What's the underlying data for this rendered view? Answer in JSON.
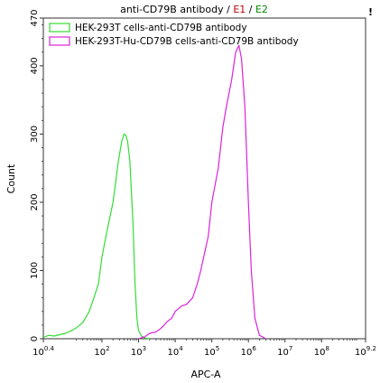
{
  "chart_data": {
    "type": "line",
    "title": {
      "prefix": "anti-CD79B antibody / ",
      "gate1": "E1",
      "separator": " / ",
      "gate2": "E2"
    },
    "corner_mark": "!",
    "xlabel": "APC-A",
    "ylabel": "Count",
    "x_scale": "log",
    "xlim": [
      2.5,
      1585000000
    ],
    "ylim": [
      0,
      470
    ],
    "x_ticks": [
      {
        "base": "10",
        "exp": "0.4"
      },
      {
        "base": "10",
        "exp": "2"
      },
      {
        "base": "10",
        "exp": "3"
      },
      {
        "base": "10",
        "exp": "4"
      },
      {
        "base": "10",
        "exp": "5"
      },
      {
        "base": "10",
        "exp": "6"
      },
      {
        "base": "10",
        "exp": "7"
      },
      {
        "base": "10",
        "exp": "8"
      },
      {
        "base": "10",
        "exp": "9.2"
      }
    ],
    "y_ticks": [
      "0",
      "100",
      "200",
      "300",
      "400",
      "470"
    ],
    "legend_position": "top-left",
    "series": [
      {
        "name": "HEK-293T cells-anti-CD79B antibody",
        "color": "#33dd33",
        "points": [
          [
            2.5,
            2
          ],
          [
            3.5,
            5
          ],
          [
            5,
            4
          ],
          [
            7,
            6
          ],
          [
            10,
            8
          ],
          [
            15,
            12
          ],
          [
            20,
            16
          ],
          [
            30,
            24
          ],
          [
            45,
            40
          ],
          [
            60,
            60
          ],
          [
            80,
            80
          ],
          [
            100,
            120
          ],
          [
            140,
            160
          ],
          [
            200,
            200
          ],
          [
            280,
            260
          ],
          [
            350,
            290
          ],
          [
            400,
            300
          ],
          [
            450,
            298
          ],
          [
            500,
            290
          ],
          [
            580,
            260
          ],
          [
            700,
            170
          ],
          [
            800,
            80
          ],
          [
            900,
            30
          ],
          [
            1000,
            12
          ],
          [
            1200,
            4
          ],
          [
            1500,
            1
          ],
          [
            2000,
            0
          ]
        ]
      },
      {
        "name": "HEK-293T-Hu-CD79B cells-anti-CD79B antibody",
        "color": "#dd22dd",
        "points": [
          [
            1000,
            0
          ],
          [
            1500,
            3
          ],
          [
            2000,
            8
          ],
          [
            3000,
            10
          ],
          [
            4000,
            15
          ],
          [
            5000,
            20
          ],
          [
            6000,
            25
          ],
          [
            8000,
            30
          ],
          [
            10000,
            40
          ],
          [
            15000,
            48
          ],
          [
            20000,
            50
          ],
          [
            30000,
            60
          ],
          [
            40000,
            80
          ],
          [
            50000,
            100
          ],
          [
            60000,
            120
          ],
          [
            80000,
            150
          ],
          [
            100000,
            200
          ],
          [
            150000,
            250
          ],
          [
            200000,
            310
          ],
          [
            250000,
            340
          ],
          [
            350000,
            380
          ],
          [
            450000,
            420
          ],
          [
            550000,
            430
          ],
          [
            650000,
            410
          ],
          [
            800000,
            340
          ],
          [
            1000000,
            200
          ],
          [
            1200000,
            100
          ],
          [
            1500000,
            30
          ],
          [
            2000000,
            5
          ],
          [
            3000000,
            0
          ]
        ]
      }
    ]
  }
}
